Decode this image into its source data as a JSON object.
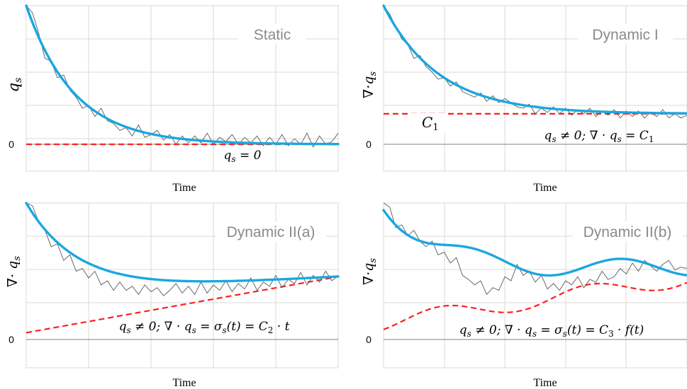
{
  "chart_data": [
    {
      "type": "line",
      "title": "Static",
      "xlabel": "Time",
      "ylabel": "q_s",
      "ytick_labels": [
        "0"
      ],
      "ylim": [
        -0.12,
        1.0
      ],
      "xlim": [
        0,
        1
      ],
      "series": [
        {
          "role": "noisy",
          "x": [
            0,
            0.02,
            0.04,
            0.06,
            0.08,
            0.1,
            0.12,
            0.14,
            0.16,
            0.18,
            0.2,
            0.22,
            0.24,
            0.26,
            0.28,
            0.3,
            0.32,
            0.34,
            0.36,
            0.38,
            0.4,
            0.42,
            0.44,
            0.46,
            0.48,
            0.5,
            0.52,
            0.54,
            0.56,
            0.58,
            0.6,
            0.62,
            0.64,
            0.66,
            0.68,
            0.7,
            0.72,
            0.74,
            0.76,
            0.78,
            0.8,
            0.82,
            0.84,
            0.86,
            0.88,
            0.9,
            0.92,
            0.94,
            0.96,
            0.98,
            1.0
          ],
          "y": [
            1.0,
            0.95,
            0.8,
            0.62,
            0.6,
            0.48,
            0.5,
            0.39,
            0.34,
            0.26,
            0.28,
            0.2,
            0.26,
            0.17,
            0.15,
            0.1,
            0.12,
            0.06,
            0.14,
            0.05,
            0.07,
            0.1,
            0.03,
            0.07,
            0.0,
            0.06,
            0.01,
            0.06,
            0.01,
            0.08,
            0.0,
            0.05,
            0.02,
            0.07,
            0.0,
            0.05,
            0.01,
            0.06,
            -0.01,
            0.05,
            0.0,
            0.07,
            -0.01,
            0.04,
            0.0,
            0.08,
            -0.02,
            0.06,
            0.0,
            0.02,
            0.08
          ]
        },
        {
          "role": "smooth",
          "model": "exp-decay",
          "start": 1.0,
          "end": 0.0,
          "rate": 6.5
        },
        {
          "role": "reference",
          "label": "q_s = 0",
          "x": [
            0,
            1
          ],
          "y": [
            0,
            0
          ]
        }
      ],
      "annotation": "q_s = 0"
    },
    {
      "type": "line",
      "title": "Dynamic I",
      "xlabel": "Time",
      "ylabel": "∇·q_s",
      "ytick_labels": [
        "0"
      ],
      "ylim": [
        -0.2,
        1.0
      ],
      "xlim": [
        0,
        1
      ],
      "series": [
        {
          "role": "noisy",
          "x": [
            0,
            0.02,
            0.04,
            0.06,
            0.08,
            0.1,
            0.12,
            0.14,
            0.16,
            0.18,
            0.2,
            0.22,
            0.24,
            0.26,
            0.28,
            0.3,
            0.32,
            0.34,
            0.36,
            0.38,
            0.4,
            0.42,
            0.44,
            0.46,
            0.48,
            0.5,
            0.52,
            0.54,
            0.56,
            0.58,
            0.6,
            0.62,
            0.64,
            0.66,
            0.68,
            0.7,
            0.72,
            0.74,
            0.76,
            0.78,
            0.8,
            0.82,
            0.84,
            0.86,
            0.88,
            0.9,
            0.92,
            0.94,
            0.96,
            0.98,
            1.0
          ],
          "y": [
            1.0,
            0.94,
            0.85,
            0.76,
            0.72,
            0.62,
            0.64,
            0.56,
            0.52,
            0.47,
            0.48,
            0.42,
            0.45,
            0.38,
            0.36,
            0.34,
            0.37,
            0.31,
            0.35,
            0.3,
            0.33,
            0.3,
            0.27,
            0.26,
            0.29,
            0.22,
            0.26,
            0.23,
            0.27,
            0.22,
            0.26,
            0.21,
            0.25,
            0.22,
            0.26,
            0.2,
            0.24,
            0.21,
            0.25,
            0.19,
            0.24,
            0.2,
            0.24,
            0.19,
            0.23,
            0.2,
            0.25,
            0.19,
            0.22,
            0.19,
            0.21
          ]
        },
        {
          "role": "smooth",
          "model": "exp-decay",
          "start": 1.0,
          "end": 0.22,
          "rate": 5.5
        },
        {
          "role": "reference",
          "label": "C_1",
          "x": [
            0,
            1
          ],
          "y": [
            0.22,
            0.22
          ]
        }
      ],
      "annotation": "q_s ≠ 0; ∇ · q_s = C_1"
    },
    {
      "type": "line",
      "title": "Dynamic II(a)",
      "xlabel": "Time",
      "ylabel": "∇· q_s",
      "ytick_labels": [
        "0"
      ],
      "ylim": [
        -0.6,
        1.0
      ],
      "xlim": [
        0,
        1
      ],
      "series": [
        {
          "role": "noisy",
          "x": [
            0,
            0.02,
            0.04,
            0.06,
            0.08,
            0.1,
            0.12,
            0.14,
            0.16,
            0.18,
            0.2,
            0.22,
            0.24,
            0.26,
            0.28,
            0.3,
            0.32,
            0.34,
            0.36,
            0.38,
            0.4,
            0.42,
            0.44,
            0.46,
            0.48,
            0.5,
            0.52,
            0.54,
            0.56,
            0.58,
            0.6,
            0.62,
            0.64,
            0.66,
            0.68,
            0.7,
            0.72,
            0.74,
            0.76,
            0.78,
            0.8,
            0.82,
            0.84,
            0.86,
            0.88,
            0.9,
            0.92,
            0.94,
            0.96,
            0.98,
            1.0
          ],
          "y": [
            1.0,
            0.98,
            0.86,
            0.8,
            0.68,
            0.7,
            0.58,
            0.62,
            0.5,
            0.52,
            0.45,
            0.5,
            0.4,
            0.43,
            0.36,
            0.42,
            0.36,
            0.39,
            0.33,
            0.4,
            0.35,
            0.38,
            0.32,
            0.36,
            0.41,
            0.34,
            0.39,
            0.33,
            0.42,
            0.34,
            0.4,
            0.36,
            0.43,
            0.35,
            0.41,
            0.37,
            0.45,
            0.36,
            0.42,
            0.39,
            0.47,
            0.38,
            0.44,
            0.41,
            0.49,
            0.4,
            0.47,
            0.42,
            0.5,
            0.43,
            0.47
          ]
        },
        {
          "role": "smooth",
          "model": "exp-decay-ramp",
          "start": 1.0,
          "end": 0.33,
          "rate": 6.0,
          "slope": 0.13
        },
        {
          "role": "reference",
          "label": "σ_s(t) = C_2 · t",
          "x": [
            0,
            1
          ],
          "y": [
            0.05,
            0.46
          ]
        }
      ],
      "annotation": "q_s ≠ 0; ∇ · q_s = σ_s(t) = C_2 · t"
    },
    {
      "type": "line",
      "title": "Dynamic II(b)",
      "xlabel": "Time",
      "ylabel": "∇·q_s",
      "ytick_labels": [
        "0"
      ],
      "ylim": [
        -0.6,
        1.0
      ],
      "xlim": [
        0,
        1
      ],
      "series": [
        {
          "role": "noisy",
          "x": [
            0,
            0.02,
            0.04,
            0.06,
            0.08,
            0.1,
            0.12,
            0.14,
            0.16,
            0.18,
            0.2,
            0.22,
            0.24,
            0.26,
            0.28,
            0.3,
            0.32,
            0.34,
            0.36,
            0.38,
            0.4,
            0.42,
            0.44,
            0.46,
            0.48,
            0.5,
            0.52,
            0.54,
            0.56,
            0.58,
            0.6,
            0.62,
            0.64,
            0.66,
            0.68,
            0.7,
            0.72,
            0.74,
            0.76,
            0.78,
            0.8,
            0.82,
            0.84,
            0.86,
            0.88,
            0.9,
            0.92,
            0.94,
            0.96,
            0.98,
            1.0
          ],
          "y": [
            1.0,
            0.97,
            0.82,
            0.84,
            0.76,
            0.8,
            0.72,
            0.68,
            0.72,
            0.62,
            0.64,
            0.56,
            0.6,
            0.47,
            0.44,
            0.4,
            0.43,
            0.33,
            0.38,
            0.36,
            0.46,
            0.43,
            0.55,
            0.47,
            0.5,
            0.42,
            0.47,
            0.37,
            0.41,
            0.36,
            0.43,
            0.4,
            0.46,
            0.38,
            0.44,
            0.42,
            0.5,
            0.44,
            0.46,
            0.52,
            0.48,
            0.56,
            0.5,
            0.58,
            0.54,
            0.5,
            0.55,
            0.58,
            0.51,
            0.53,
            0.52
          ]
        },
        {
          "role": "smooth",
          "model": "decay-oscillation"
        },
        {
          "role": "reference",
          "label": "σ_s(t) = C_3 · f(t)",
          "model": "oscillation"
        }
      ],
      "annotation": "q_s ≠ 0; ∇ · q_s = σ_s(t) = C_3 · f(t)"
    }
  ]
}
